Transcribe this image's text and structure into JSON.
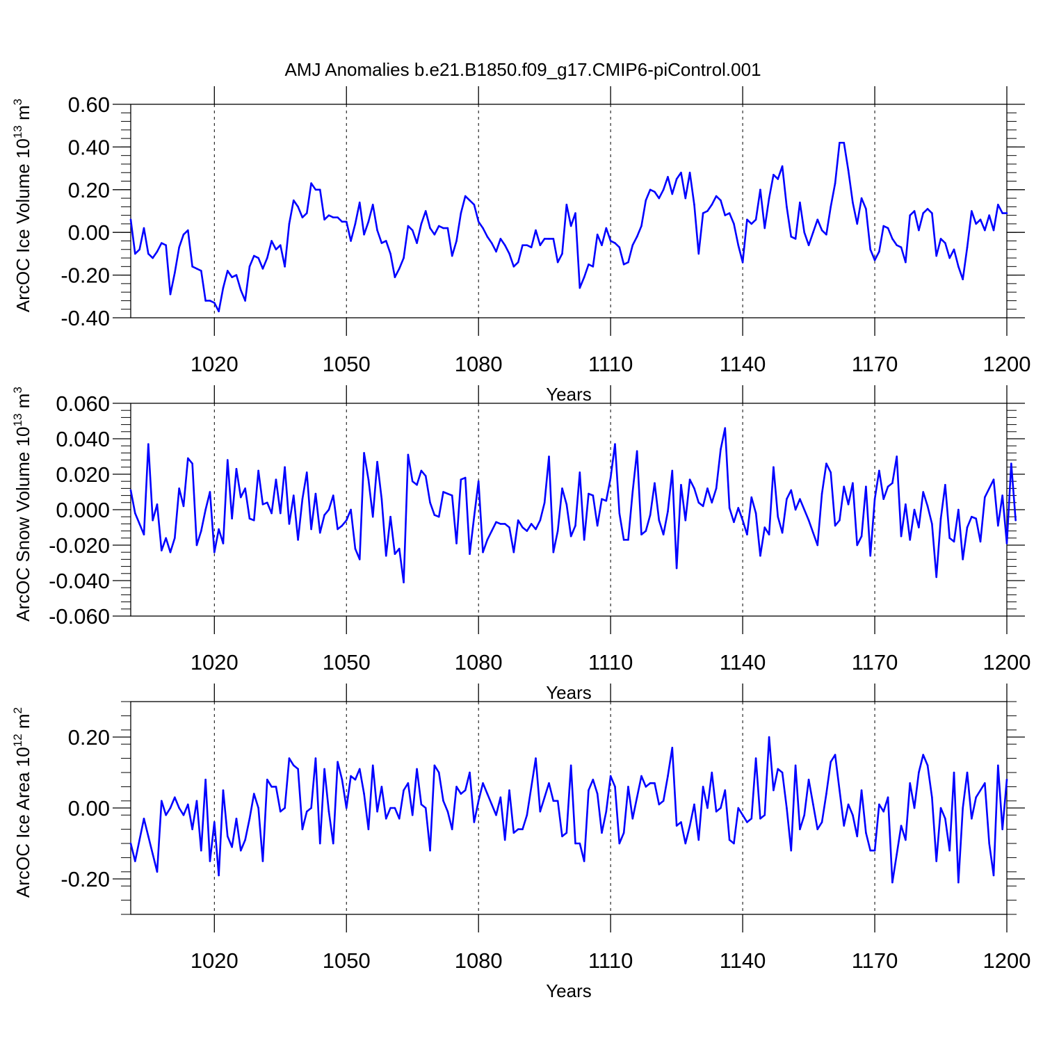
{
  "title": "AMJ Anomalies b.e21.B1850.f09_g17.CMIP6-piControl.001",
  "line_color": "#0000ff",
  "chart_data": [
    {
      "type": "line",
      "ylabel_main": "ArcOC Ice Volume 10",
      "ylabel_exp": "13",
      "ylabel_unit": "m",
      "ylabel_unit_exp": "3",
      "xlabel": "Years",
      "xlim": [
        1001,
        1200
      ],
      "ylim": [
        -0.4,
        0.6
      ],
      "yticks": [
        -0.4,
        -0.2,
        0.0,
        0.2,
        0.4,
        0.6
      ],
      "yticklabels": [
        "-0.40",
        "-0.20",
        "0.00",
        "0.20",
        "0.40",
        "0.60"
      ],
      "xticks": [
        1020,
        1050,
        1080,
        1110,
        1140,
        1170,
        1200
      ],
      "xticklabels": [
        "1020",
        "1050",
        "1080",
        "1110",
        "1140",
        "1170",
        "1200"
      ],
      "x_start": 1001,
      "values": [
        0.06,
        -0.1,
        -0.08,
        0.02,
        -0.1,
        -0.12,
        -0.09,
        -0.05,
        -0.06,
        -0.29,
        -0.19,
        -0.07,
        -0.01,
        0.01,
        -0.16,
        -0.17,
        -0.18,
        -0.32,
        -0.32,
        -0.33,
        -0.37,
        -0.26,
        -0.18,
        -0.21,
        -0.2,
        -0.27,
        -0.32,
        -0.16,
        -0.11,
        -0.12,
        -0.17,
        -0.12,
        -0.04,
        -0.08,
        -0.06,
        -0.16,
        0.04,
        0.15,
        0.12,
        0.07,
        0.09,
        0.23,
        0.2,
        0.2,
        0.06,
        0.08,
        0.07,
        0.07,
        0.05,
        0.05,
        -0.04,
        0.04,
        0.14,
        -0.01,
        0.05,
        0.13,
        0.01,
        -0.05,
        -0.04,
        -0.1,
        -0.21,
        -0.17,
        -0.12,
        0.03,
        0.01,
        -0.05,
        0.04,
        0.1,
        0.02,
        -0.01,
        0.03,
        0.02,
        0.02,
        -0.11,
        -0.04,
        0.09,
        0.17,
        0.15,
        0.13,
        0.05,
        0.02,
        -0.02,
        -0.05,
        -0.09,
        -0.03,
        -0.06,
        -0.1,
        -0.16,
        -0.14,
        -0.06,
        -0.06,
        -0.07,
        0.01,
        -0.06,
        -0.03,
        -0.03,
        -0.03,
        -0.14,
        -0.1,
        0.13,
        0.03,
        0.09,
        -0.26,
        -0.21,
        -0.15,
        -0.16,
        -0.01,
        -0.06,
        0.02,
        -0.04,
        -0.05,
        -0.07,
        -0.15,
        -0.14,
        -0.06,
        -0.02,
        0.03,
        0.15,
        0.2,
        0.19,
        0.16,
        0.2,
        0.26,
        0.18,
        0.25,
        0.28,
        0.16,
        0.28,
        0.13,
        -0.1,
        0.09,
        0.1,
        0.13,
        0.17,
        0.15,
        0.08,
        0.09,
        0.04,
        -0.06,
        -0.14,
        0.06,
        0.04,
        0.06,
        0.2,
        0.02,
        0.16,
        0.27,
        0.25,
        0.31,
        0.12,
        -0.02,
        -0.03,
        0.14,
        0.0,
        -0.06,
        0.0,
        0.06,
        0.01,
        -0.01,
        0.12,
        0.23,
        0.42,
        0.42,
        0.29,
        0.14,
        0.04,
        0.16,
        0.11,
        -0.08,
        -0.13,
        -0.09,
        0.03,
        0.02,
        -0.03,
        -0.06,
        -0.07,
        -0.14,
        0.08,
        0.1,
        0.01,
        0.09,
        0.11,
        0.09,
        -0.11,
        -0.03,
        -0.05,
        -0.12,
        -0.08,
        -0.16,
        -0.22,
        -0.07,
        0.1,
        0.04,
        0.06,
        0.01,
        0.08,
        0.01,
        0.13,
        0.09,
        0.09
      ]
    },
    {
      "type": "line",
      "ylabel_main": "ArcOC Snow Volume 10",
      "ylabel_exp": "13",
      "ylabel_unit": "m",
      "ylabel_unit_exp": "3",
      "xlabel": "Years",
      "xlim": [
        1001,
        1200
      ],
      "ylim": [
        -0.06,
        0.06
      ],
      "yticks": [
        -0.06,
        -0.04,
        -0.02,
        0.0,
        0.02,
        0.04,
        0.06
      ],
      "yticklabels": [
        "-0.060",
        "-0.040",
        "-0.020",
        "0.000",
        "0.020",
        "0.040",
        "0.060"
      ],
      "xticks": [
        1020,
        1050,
        1080,
        1110,
        1140,
        1170,
        1200
      ],
      "xticklabels": [
        "1020",
        "1050",
        "1080",
        "1110",
        "1140",
        "1170",
        "1200"
      ],
      "x_start": 1001,
      "values": [
        0.011,
        -0.002,
        -0.008,
        -0.014,
        0.037,
        -0.006,
        0.003,
        -0.023,
        -0.016,
        -0.024,
        -0.016,
        0.012,
        0.002,
        0.029,
        0.026,
        -0.02,
        -0.012,
        0.0,
        0.01,
        -0.024,
        -0.011,
        -0.019,
        0.028,
        -0.005,
        0.023,
        0.007,
        0.012,
        -0.005,
        -0.006,
        0.022,
        0.003,
        0.004,
        -0.002,
        0.017,
        -0.002,
        0.024,
        -0.008,
        0.008,
        -0.017,
        0.006,
        0.021,
        -0.011,
        0.009,
        -0.013,
        -0.003,
        0.0,
        0.008,
        -0.011,
        -0.009,
        -0.006,
        0.0,
        -0.022,
        -0.028,
        0.032,
        0.017,
        -0.004,
        0.027,
        0.006,
        -0.026,
        -0.004,
        -0.025,
        -0.022,
        -0.041,
        0.031,
        0.016,
        0.014,
        0.022,
        0.019,
        0.004,
        -0.003,
        -0.004,
        0.01,
        0.009,
        0.008,
        -0.019,
        0.017,
        0.018,
        -0.025,
        -0.004,
        0.016,
        -0.024,
        -0.017,
        -0.012,
        -0.007,
        -0.008,
        -0.008,
        -0.01,
        -0.024,
        -0.006,
        -0.01,
        -0.012,
        -0.008,
        -0.011,
        -0.006,
        0.004,
        0.03,
        -0.024,
        -0.012,
        0.012,
        0.003,
        -0.015,
        -0.009,
        0.021,
        -0.017,
        0.009,
        0.008,
        -0.009,
        0.006,
        0.005,
        0.018,
        0.037,
        -0.002,
        -0.017,
        -0.017,
        0.01,
        0.033,
        -0.014,
        -0.012,
        -0.003,
        0.015,
        -0.006,
        -0.014,
        -0.001,
        0.022,
        -0.033,
        0.014,
        -0.006,
        0.017,
        0.012,
        0.004,
        0.002,
        0.012,
        0.004,
        0.012,
        0.034,
        0.046,
        0.001,
        -0.007,
        0.001,
        -0.006,
        -0.014,
        0.007,
        -0.002,
        -0.026,
        -0.01,
        -0.014,
        0.024,
        -0.004,
        -0.013,
        0.006,
        0.011,
        0.0,
        0.006,
        0.0,
        -0.006,
        -0.013,
        -0.02,
        0.009,
        0.026,
        0.021,
        -0.009,
        -0.006,
        0.013,
        0.003,
        0.015,
        -0.02,
        -0.015,
        0.013,
        -0.026,
        0.006,
        0.022,
        0.006,
        0.013,
        0.015,
        0.03,
        -0.015,
        0.003,
        -0.017,
        0.0,
        -0.01,
        0.01,
        0.002,
        -0.008,
        -0.038,
        -0.005,
        0.014,
        -0.016,
        -0.018,
        0.0,
        -0.028,
        -0.01,
        -0.004,
        -0.005,
        -0.018,
        0.007,
        0.012,
        0.017,
        -0.009,
        0.008,
        -0.019,
        0.026,
        -0.006
      ]
    },
    {
      "type": "line",
      "ylabel_main": "ArcOC Ice Area 10",
      "ylabel_exp": "12",
      "ylabel_unit": "m",
      "ylabel_unit_exp": "2",
      "xlabel": "Years",
      "xlim": [
        1001,
        1200
      ],
      "ylim": [
        -0.3,
        0.3
      ],
      "yticks": [
        -0.2,
        0.0,
        0.2
      ],
      "yticklabels": [
        "-0.20",
        "0.00",
        "0.20"
      ],
      "xticks": [
        1020,
        1050,
        1080,
        1110,
        1140,
        1170,
        1200
      ],
      "xticklabels": [
        "1020",
        "1050",
        "1080",
        "1110",
        "1140",
        "1170",
        "1200"
      ],
      "x_start": 1001,
      "values": [
        -0.1,
        -0.15,
        -0.09,
        -0.03,
        -0.08,
        -0.13,
        -0.18,
        0.02,
        -0.02,
        0.0,
        0.03,
        0.0,
        -0.02,
        0.01,
        -0.06,
        0.02,
        -0.12,
        0.08,
        -0.15,
        -0.04,
        -0.19,
        0.05,
        -0.08,
        -0.11,
        -0.03,
        -0.12,
        -0.09,
        -0.03,
        0.04,
        0.0,
        -0.15,
        0.08,
        0.06,
        0.06,
        -0.01,
        0.0,
        0.14,
        0.12,
        0.11,
        -0.06,
        -0.01,
        0.0,
        0.14,
        -0.1,
        0.11,
        -0.01,
        -0.1,
        0.13,
        0.08,
        0.0,
        0.09,
        0.08,
        0.11,
        0.04,
        -0.06,
        0.12,
        -0.01,
        0.06,
        -0.03,
        0.0,
        0.0,
        -0.03,
        0.05,
        0.07,
        -0.02,
        0.11,
        0.01,
        0.0,
        -0.12,
        0.12,
        0.1,
        0.02,
        -0.01,
        -0.06,
        0.06,
        0.04,
        0.05,
        0.1,
        -0.04,
        0.02,
        0.07,
        0.04,
        0.01,
        -0.02,
        0.03,
        -0.09,
        0.05,
        -0.07,
        -0.06,
        -0.06,
        -0.02,
        0.06,
        0.14,
        -0.01,
        0.03,
        0.07,
        0.02,
        0.02,
        -0.08,
        -0.07,
        0.12,
        -0.1,
        -0.1,
        -0.15,
        0.05,
        0.08,
        0.04,
        -0.07,
        -0.01,
        0.09,
        0.06,
        -0.1,
        -0.07,
        0.06,
        -0.03,
        0.03,
        0.09,
        0.06,
        0.07,
        0.07,
        0.01,
        0.02,
        0.09,
        0.17,
        -0.05,
        -0.04,
        -0.1,
        -0.05,
        0.01,
        -0.09,
        0.06,
        0.0,
        0.1,
        -0.01,
        0.0,
        0.05,
        -0.09,
        -0.1,
        0.0,
        -0.02,
        -0.04,
        -0.03,
        0.14,
        -0.03,
        -0.02,
        0.2,
        0.05,
        0.11,
        0.1,
        0.0,
        -0.12,
        0.12,
        -0.06,
        -0.02,
        0.08,
        0.01,
        -0.06,
        -0.04,
        0.04,
        0.13,
        0.15,
        0.05,
        -0.05,
        0.01,
        -0.02,
        -0.08,
        0.05,
        -0.07,
        -0.12,
        -0.12,
        0.01,
        -0.01,
        0.03,
        -0.21,
        -0.13,
        -0.05,
        -0.09,
        0.07,
        0.0,
        0.1,
        0.15,
        0.12,
        0.03,
        -0.15,
        0.0,
        -0.03,
        -0.12,
        0.1,
        -0.21,
        0.0,
        0.1,
        -0.03,
        0.03,
        0.05,
        0.07,
        -0.1,
        -0.19,
        0.12,
        -0.06,
        0.08
      ]
    }
  ]
}
